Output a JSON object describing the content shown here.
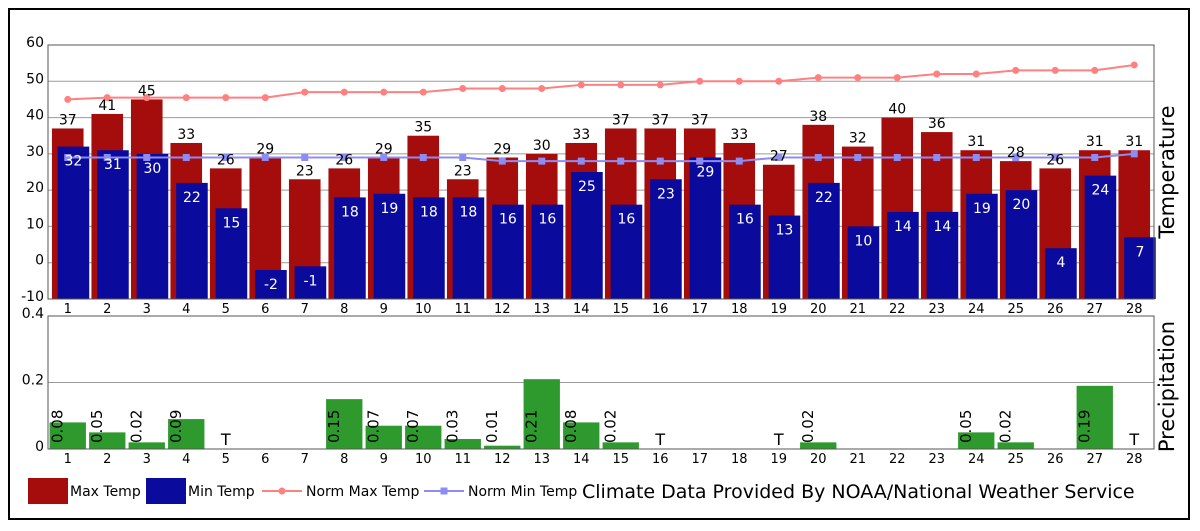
{
  "chart_data": [
    {
      "type": "bar",
      "panel": "temperature",
      "ylabel": "Temperature",
      "ylim": [
        -10,
        60
      ],
      "yticks": [
        -10,
        0,
        10,
        20,
        30,
        40,
        50,
        60
      ],
      "grid": true,
      "categories": [
        "1",
        "2",
        "3",
        "4",
        "5",
        "6",
        "7",
        "8",
        "9",
        "10",
        "11",
        "12",
        "13",
        "14",
        "15",
        "16",
        "17",
        "18",
        "19",
        "20",
        "21",
        "22",
        "23",
        "24",
        "25",
        "26",
        "27",
        "28"
      ],
      "series": [
        {
          "name": "Max Temp",
          "kind": "bar",
          "color": "#a50c0c",
          "values": [
            37,
            41,
            45,
            33,
            26,
            29,
            23,
            26,
            29,
            35,
            23,
            29,
            30,
            33,
            37,
            37,
            37,
            33,
            27,
            38,
            32,
            40,
            36,
            31,
            28,
            26,
            31,
            31
          ]
        },
        {
          "name": "Min Temp",
          "kind": "bar",
          "color": "#0a0a9c",
          "values": [
            32,
            31,
            30,
            22,
            15,
            -2,
            -1,
            18,
            19,
            18,
            18,
            16,
            16,
            25,
            16,
            23,
            29,
            16,
            13,
            22,
            10,
            14,
            14,
            19,
            20,
            4,
            24,
            7
          ]
        },
        {
          "name": "Norm Max Temp",
          "kind": "line",
          "color": "#ff8080",
          "values": [
            45,
            45.5,
            45.5,
            45.5,
            45.5,
            45.5,
            47,
            47,
            47,
            47,
            48,
            48,
            48,
            49,
            49,
            49,
            50,
            50,
            50,
            51,
            51,
            51,
            52,
            52,
            53,
            53,
            53,
            54.5
          ]
        },
        {
          "name": "Norm Min Temp",
          "kind": "line",
          "color": "#8c8cf2",
          "values": [
            29,
            29,
            29,
            29,
            29,
            29,
            29,
            29,
            29,
            29,
            29,
            28,
            28,
            28,
            28,
            28,
            28,
            28,
            29,
            29,
            29,
            29,
            29,
            29,
            29,
            29,
            29,
            30
          ]
        }
      ]
    },
    {
      "type": "bar",
      "panel": "precipitation",
      "ylabel": "Precipitation",
      "ylim": [
        0,
        0.4
      ],
      "yticks": [
        "0",
        "0.2",
        "0.4"
      ],
      "grid": true,
      "categories": [
        "1",
        "2",
        "3",
        "4",
        "5",
        "6",
        "7",
        "8",
        "9",
        "10",
        "11",
        "12",
        "13",
        "14",
        "15",
        "16",
        "17",
        "18",
        "19",
        "20",
        "21",
        "22",
        "23",
        "24",
        "25",
        "26",
        "27",
        "28"
      ],
      "series": [
        {
          "name": "Precipitation",
          "color": "#2e9a2e",
          "values": [
            0.08,
            0.05,
            0.02,
            0.09,
            0,
            0,
            0,
            0.15,
            0.07,
            0.07,
            0.03,
            0.01,
            0.21,
            0.08,
            0.02,
            0,
            0,
            0,
            0,
            0.02,
            0,
            0,
            0,
            0.05,
            0.02,
            0,
            0.19,
            0
          ],
          "labels": [
            "0.08",
            "0.05",
            "0.02",
            "0.09",
            "T",
            "",
            "",
            "0.15",
            "0.07",
            "0.07",
            "0.03",
            "0.01",
            "0.21",
            "0.08",
            "0.02",
            "T",
            "",
            "",
            "T",
            "0.02",
            "",
            "",
            "",
            "0.05",
            "0.02",
            "",
            "0.19",
            "T"
          ]
        }
      ]
    }
  ],
  "legend": {
    "items": [
      {
        "name": "Max Temp",
        "style": "box",
        "color": "#a50c0c"
      },
      {
        "name": "Min Temp",
        "style": "box",
        "color": "#0a0a9c"
      },
      {
        "name": "Norm Max Temp",
        "style": "line",
        "color": "#ff8080"
      },
      {
        "name": "Norm Min Temp",
        "style": "line",
        "color": "#8c8cf2"
      }
    ],
    "credit": "Climate Data Provided By NOAA/National Weather Service"
  }
}
